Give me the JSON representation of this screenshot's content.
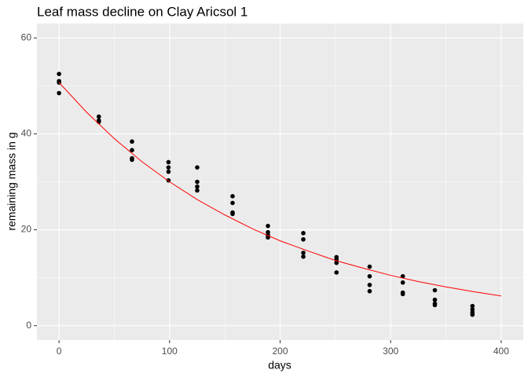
{
  "chart_data": {
    "type": "scatter",
    "title": "Leaf mass decline on Clay Aricsol 1",
    "xlabel": "days",
    "ylabel": "remaining mass in g",
    "xlim": [
      -20,
      420
    ],
    "ylim": [
      -3,
      63
    ],
    "xticks": [
      0,
      100,
      200,
      300,
      400
    ],
    "yticks": [
      0,
      20,
      40,
      60
    ],
    "grid": true,
    "series": [
      {
        "color": "#000000",
        "x": [
          0,
          0,
          0,
          0,
          36,
          36,
          36,
          66,
          66,
          66,
          66,
          99,
          99,
          99,
          99,
          125,
          125,
          125,
          125,
          157,
          157,
          157,
          157,
          189,
          189,
          189,
          189,
          221,
          221,
          221,
          221,
          251,
          251,
          251,
          251,
          281,
          281,
          281,
          281,
          311,
          311,
          311,
          311,
          340,
          340,
          340,
          340,
          374,
          374,
          374,
          374
        ],
        "values": [
          52.5,
          51.0,
          50.7,
          48.5,
          43.6,
          42.8,
          42.5,
          38.4,
          36.6,
          34.9,
          34.6,
          34.1,
          33.0,
          32.1,
          30.3,
          33.0,
          30.0,
          29.0,
          28.2,
          27.0,
          25.6,
          23.6,
          23.3,
          20.8,
          19.5,
          18.9,
          18.4,
          19.3,
          18.0,
          15.2,
          14.4,
          14.3,
          13.8,
          13.1,
          11.1,
          12.3,
          10.3,
          8.5,
          7.2,
          10.3,
          9.0,
          6.9,
          6.6,
          7.4,
          5.4,
          4.6,
          4.3,
          4.1,
          3.4,
          2.8,
          2.3
        ]
      },
      {
        "color": "#ff0000",
        "line": true,
        "x": [
          0,
          25,
          50,
          75,
          100,
          125,
          150,
          175,
          200,
          225,
          250,
          275,
          300,
          325,
          350,
          375,
          400
        ],
        "values": [
          50.7,
          44.5,
          39.0,
          34.2,
          30.0,
          26.3,
          23.1,
          20.2,
          17.7,
          15.6,
          13.6,
          12.0,
          10.5,
          9.2,
          8.1,
          7.1,
          6.2
        ]
      }
    ]
  }
}
